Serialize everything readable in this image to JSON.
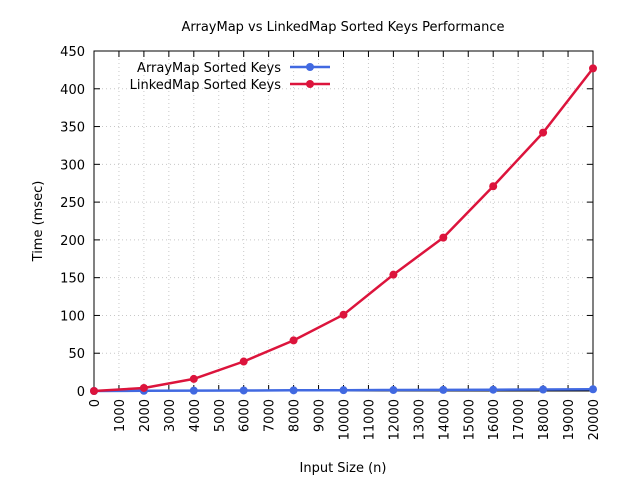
{
  "chart_data": {
    "type": "line",
    "title": "ArrayMap vs LinkedMap Sorted Keys Performance",
    "xlabel": "Input Size (n)",
    "ylabel": "Time (msec)",
    "xlim": [
      0,
      20000
    ],
    "ylim": [
      0,
      450
    ],
    "x_ticks": [
      0,
      1000,
      2000,
      3000,
      4000,
      5000,
      6000,
      7000,
      8000,
      9000,
      10000,
      11000,
      12000,
      13000,
      14000,
      15000,
      16000,
      17000,
      18000,
      19000,
      20000
    ],
    "y_ticks": [
      0,
      50,
      100,
      150,
      200,
      250,
      300,
      350,
      400,
      450
    ],
    "grid": true,
    "legend_position": "top-left",
    "x": [
      0,
      2000,
      4000,
      6000,
      8000,
      10000,
      12000,
      14000,
      16000,
      18000,
      20000
    ],
    "series": [
      {
        "name": "ArrayMap Sorted Keys",
        "color": "#4169e1",
        "values": [
          0,
          0.3,
          0.5,
          0.7,
          0.9,
          1.1,
          1.3,
          1.5,
          1.7,
          2.0,
          2.3
        ]
      },
      {
        "name": "LinkedMap Sorted Keys",
        "color": "#dc143c",
        "values": [
          0,
          4,
          16,
          39,
          67,
          101,
          154,
          203,
          271,
          342,
          427
        ]
      }
    ]
  }
}
